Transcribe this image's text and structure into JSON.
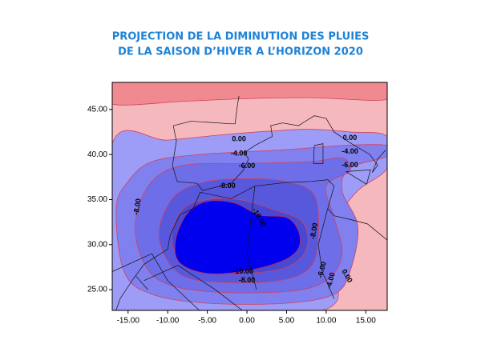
{
  "chart_data": {
    "type": "contour",
    "title": [
      "PROJECTION DE LA DIMINUTION DES PLUIES",
      "DE LA SAISON D’HIVER A L’HORIZON 2020"
    ],
    "xlim": [
      -17,
      17.7
    ],
    "ylim": [
      22.7,
      48
    ],
    "xticks": [
      {
        "value": -15,
        "label": "-15.00"
      },
      {
        "value": -10,
        "label": "-10.00"
      },
      {
        "value": -5,
        "label": "-5.00"
      },
      {
        "value": 0,
        "label": "0.00"
      },
      {
        "value": 5,
        "label": "5.00"
      },
      {
        "value": 10,
        "label": "10.00"
      },
      {
        "value": 15,
        "label": "15.00"
      }
    ],
    "yticks": [
      {
        "value": 25,
        "label": "25.00"
      },
      {
        "value": 30,
        "label": "30.00"
      },
      {
        "value": 35,
        "label": "35.00"
      },
      {
        "value": 40,
        "label": "40.00"
      },
      {
        "value": 45,
        "label": "45.00"
      }
    ],
    "background_color": "#f5b9bd",
    "contours": [
      {
        "color": "#f08a90",
        "x": [
          -17,
          -8,
          0,
          8,
          17.7,
          17.7,
          -17
        ],
        "y": [
          45.6,
          45.9,
          46.2,
          46.3,
          46.1,
          48,
          48
        ]
      },
      {
        "color": "#9d9df7",
        "x": [
          -17,
          -10,
          -3,
          3,
          8,
          13,
          17.7,
          17.7,
          14,
          11.5,
          10,
          9.5,
          -17
        ],
        "y": [
          41.2,
          41.6,
          42.2,
          42.6,
          42.8,
          42.5,
          42,
          38.5,
          36,
          33,
          29,
          22.7,
          22.7
        ]
      },
      {
        "color": "#8080ef",
        "x": [
          -16.5,
          -15,
          -12,
          -6,
          0,
          6,
          12,
          17.7,
          17.7,
          13,
          12,
          14,
          13,
          11,
          5,
          -5,
          -12,
          -15.5
        ],
        "y": [
          34,
          37,
          39.2,
          40,
          40.3,
          40.6,
          41,
          41,
          39.8,
          38.5,
          36,
          32,
          27,
          24.5,
          23.5,
          23.5,
          24.5,
          27
        ]
      },
      {
        "color": "#6e6ee8",
        "x": [
          -14,
          -12,
          -8,
          0,
          8,
          12,
          13,
          10,
          11,
          12,
          10,
          5,
          -5,
          -11,
          -13.5
        ],
        "y": [
          33,
          37,
          38.8,
          39,
          39.2,
          39.6,
          38.2,
          36.5,
          33,
          29,
          26,
          24.8,
          24.8,
          26,
          29
        ]
      },
      {
        "color": "#5858dc",
        "x": [
          -11,
          -9,
          -5,
          0,
          5,
          8.5,
          9,
          8,
          4,
          -3,
          -8,
          -10.5
        ],
        "y": [
          32,
          35.5,
          37,
          37.3,
          37,
          35.5,
          31,
          27.5,
          26,
          25.8,
          26.5,
          29
        ]
      },
      {
        "color": "#4848d2",
        "x": [
          -9.5,
          -8,
          -5,
          -1,
          3,
          7,
          7.5,
          5,
          0,
          -5,
          -8.5
        ],
        "y": [
          31,
          34,
          35,
          35,
          34,
          32.5,
          29.5,
          27.5,
          26.8,
          27,
          28.5
        ]
      },
      {
        "color": "#0000ee",
        "x": [
          -9,
          -7.5,
          -5,
          -1.5,
          1.5,
          5,
          6.5,
          6.5,
          4.5,
          0,
          -5,
          -8.5
        ],
        "y": [
          30.5,
          33.5,
          34.8,
          34.6,
          33.3,
          33,
          31.5,
          29.6,
          28.2,
          27.1,
          26.8,
          28
        ]
      }
    ],
    "labels": [
      {
        "text": "0.00",
        "x": -1,
        "y": 41.7
      },
      {
        "text": "0.00",
        "x": 13,
        "y": 41.8
      },
      {
        "text": "-4.00",
        "x": -1,
        "y": 40.1
      },
      {
        "text": "-4.00",
        "x": 13,
        "y": 40.3
      },
      {
        "text": "-6.00",
        "x": 0,
        "y": 38.7
      },
      {
        "text": "-6.00",
        "x": 13,
        "y": 38.8
      },
      {
        "text": "-8.00",
        "x": -2.5,
        "y": 36.5
      },
      {
        "text": "-8.00",
        "x": -13.8,
        "y": 34.2
      },
      {
        "text": "-10.00",
        "x": 1.5,
        "y": 33
      },
      {
        "text": "-8.00",
        "x": 8.5,
        "y": 31.5
      },
      {
        "text": "-6.00",
        "x": 9.5,
        "y": 27.2
      },
      {
        "text": "-4.00",
        "x": 10.6,
        "y": 26
      },
      {
        "text": "0.00",
        "x": 12.6,
        "y": 26.5
      },
      {
        "text": "-10.00",
        "x": -0.5,
        "y": 27
      },
      {
        "text": "-8.00",
        "x": 0,
        "y": 26
      }
    ]
  }
}
